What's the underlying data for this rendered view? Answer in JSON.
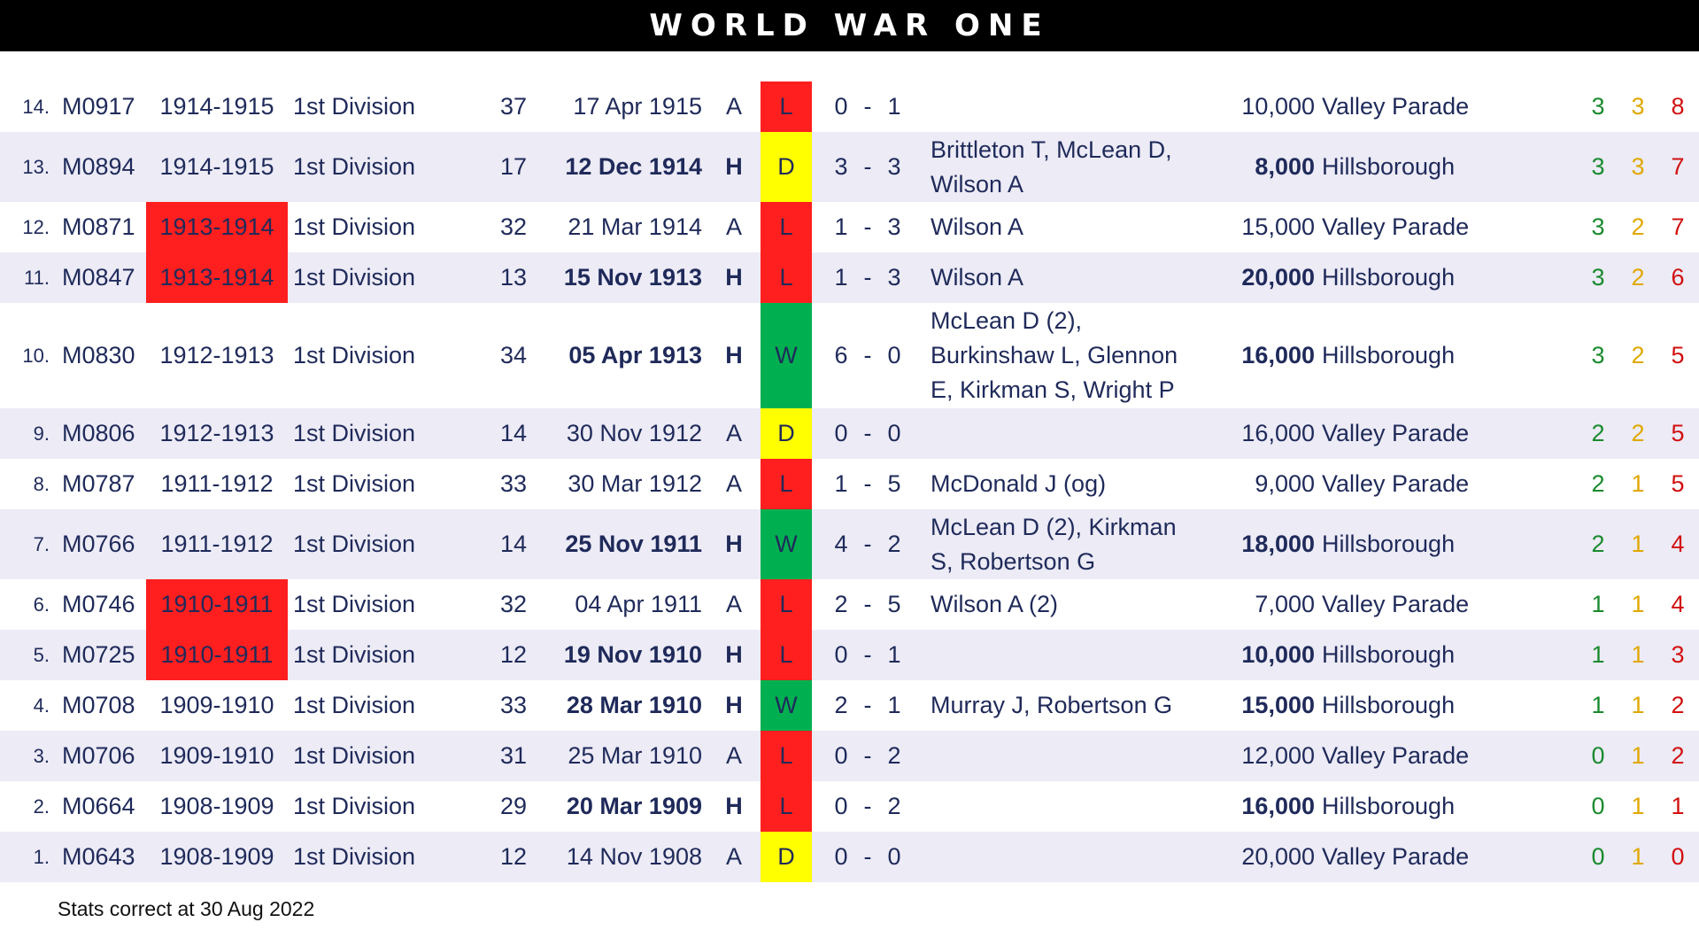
{
  "banner": {
    "title": "WORLD WAR ONE"
  },
  "footer": {
    "text": "Stats correct at 30 Aug 2022"
  },
  "colors": {
    "loss": "#ff1f1f",
    "draw": "#ffff00",
    "win": "#00b050",
    "row_alt": "#ecebf6",
    "text": "#1f2a5a",
    "wins_count": "#1a8a2e",
    "draws_count": "#e0a800",
    "losses_count": "#d21010"
  },
  "rows": [
    {
      "num": "14.",
      "code": "M0917",
      "season": "1914-1915",
      "season_highlight": false,
      "division": "1st Division",
      "position": "37",
      "date": "17 Apr 1915",
      "venue_type": "A",
      "result": "L",
      "score_for": "0",
      "score_against": "1",
      "scorers": "",
      "attendance": "10,000",
      "venue": "Valley Parade",
      "wins": "3",
      "draws": "3",
      "losses": "8"
    },
    {
      "num": "13.",
      "code": "M0894",
      "season": "1914-1915",
      "season_highlight": false,
      "division": "1st Division",
      "position": "17",
      "date": "12 Dec 1914",
      "venue_type": "H",
      "result": "D",
      "score_for": "3",
      "score_against": "3",
      "scorers": "Brittleton T, McLean D, Wilson A",
      "attendance": "8,000",
      "venue": "Hillsborough",
      "wins": "3",
      "draws": "3",
      "losses": "7"
    },
    {
      "num": "12.",
      "code": "M0871",
      "season": "1913-1914",
      "season_highlight": true,
      "division": "1st Division",
      "position": "32",
      "date": "21 Mar 1914",
      "venue_type": "A",
      "result": "L",
      "score_for": "1",
      "score_against": "3",
      "scorers": "Wilson A",
      "attendance": "15,000",
      "venue": "Valley Parade",
      "wins": "3",
      "draws": "2",
      "losses": "7"
    },
    {
      "num": "11.",
      "code": "M0847",
      "season": "1913-1914",
      "season_highlight": true,
      "division": "1st Division",
      "position": "13",
      "date": "15 Nov 1913",
      "venue_type": "H",
      "result": "L",
      "score_for": "1",
      "score_against": "3",
      "scorers": "Wilson A",
      "attendance": "20,000",
      "venue": "Hillsborough",
      "wins": "3",
      "draws": "2",
      "losses": "6"
    },
    {
      "num": "10.",
      "code": "M0830",
      "season": "1912-1913",
      "season_highlight": false,
      "division": "1st Division",
      "position": "34",
      "date": "05 Apr 1913",
      "venue_type": "H",
      "result": "W",
      "score_for": "6",
      "score_against": "0",
      "scorers": "McLean D (2), Burkinshaw L, Glennon E, Kirkman S, Wright P",
      "attendance": "16,000",
      "venue": "Hillsborough",
      "wins": "3",
      "draws": "2",
      "losses": "5"
    },
    {
      "num": "9.",
      "code": "M0806",
      "season": "1912-1913",
      "season_highlight": false,
      "division": "1st Division",
      "position": "14",
      "date": "30 Nov 1912",
      "venue_type": "A",
      "result": "D",
      "score_for": "0",
      "score_against": "0",
      "scorers": "",
      "attendance": "16,000",
      "venue": "Valley Parade",
      "wins": "2",
      "draws": "2",
      "losses": "5"
    },
    {
      "num": "8.",
      "code": "M0787",
      "season": "1911-1912",
      "season_highlight": false,
      "division": "1st Division",
      "position": "33",
      "date": "30 Mar 1912",
      "venue_type": "A",
      "result": "L",
      "score_for": "1",
      "score_against": "5",
      "scorers": "McDonald J (og)",
      "attendance": "9,000",
      "venue": "Valley Parade",
      "wins": "2",
      "draws": "1",
      "losses": "5"
    },
    {
      "num": "7.",
      "code": "M0766",
      "season": "1911-1912",
      "season_highlight": false,
      "division": "1st Division",
      "position": "14",
      "date": "25 Nov 1911",
      "venue_type": "H",
      "result": "W",
      "score_for": "4",
      "score_against": "2",
      "scorers": "McLean D (2), Kirkman S, Robertson G",
      "attendance": "18,000",
      "venue": "Hillsborough",
      "wins": "2",
      "draws": "1",
      "losses": "4"
    },
    {
      "num": "6.",
      "code": "M0746",
      "season": "1910-1911",
      "season_highlight": true,
      "division": "1st Division",
      "position": "32",
      "date": "04 Apr 1911",
      "venue_type": "A",
      "result": "L",
      "score_for": "2",
      "score_against": "5",
      "scorers": "Wilson A (2)",
      "attendance": "7,000",
      "venue": "Valley Parade",
      "wins": "1",
      "draws": "1",
      "losses": "4"
    },
    {
      "num": "5.",
      "code": "M0725",
      "season": "1910-1911",
      "season_highlight": true,
      "division": "1st Division",
      "position": "12",
      "date": "19 Nov 1910",
      "venue_type": "H",
      "result": "L",
      "score_for": "0",
      "score_against": "1",
      "scorers": "",
      "attendance": "10,000",
      "venue": "Hillsborough",
      "wins": "1",
      "draws": "1",
      "losses": "3"
    },
    {
      "num": "4.",
      "code": "M0708",
      "season": "1909-1910",
      "season_highlight": false,
      "division": "1st Division",
      "position": "33",
      "date": "28 Mar 1910",
      "venue_type": "H",
      "result": "W",
      "score_for": "2",
      "score_against": "1",
      "scorers": "Murray J, Robertson G",
      "attendance": "15,000",
      "venue": "Hillsborough",
      "wins": "1",
      "draws": "1",
      "losses": "2"
    },
    {
      "num": "3.",
      "code": "M0706",
      "season": "1909-1910",
      "season_highlight": false,
      "division": "1st Division",
      "position": "31",
      "date": "25 Mar 1910",
      "venue_type": "A",
      "result": "L",
      "score_for": "0",
      "score_against": "2",
      "scorers": "",
      "attendance": "12,000",
      "venue": "Valley Parade",
      "wins": "0",
      "draws": "1",
      "losses": "2"
    },
    {
      "num": "2.",
      "code": "M0664",
      "season": "1908-1909",
      "season_highlight": false,
      "division": "1st Division",
      "position": "29",
      "date": "20 Mar 1909",
      "venue_type": "H",
      "result": "L",
      "score_for": "0",
      "score_against": "2",
      "scorers": "",
      "attendance": "16,000",
      "venue": "Hillsborough",
      "wins": "0",
      "draws": "1",
      "losses": "1"
    },
    {
      "num": "1.",
      "code": "M0643",
      "season": "1908-1909",
      "season_highlight": false,
      "division": "1st Division",
      "position": "12",
      "date": "14 Nov 1908",
      "venue_type": "A",
      "result": "D",
      "score_for": "0",
      "score_against": "0",
      "scorers": "",
      "attendance": "20,000",
      "venue": "Valley Parade",
      "wins": "0",
      "draws": "1",
      "losses": "0"
    }
  ]
}
